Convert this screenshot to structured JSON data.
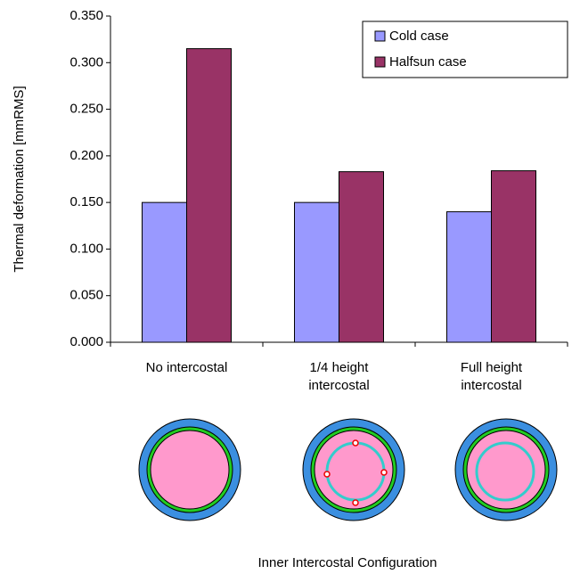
{
  "chart_data": {
    "type": "bar",
    "y_label": "Thermal deformation [mmRMS]",
    "x_label": "Inner Intercostal Configuration",
    "categories": [
      "No intercostal",
      "1/4 height intercostal",
      "Full height intercostal"
    ],
    "series": [
      {
        "name": "Cold case",
        "color": "#9999ff",
        "values": [
          0.15,
          0.15,
          0.14
        ]
      },
      {
        "name": "Halfsun case",
        "color": "#993366",
        "values": [
          0.315,
          0.183,
          0.184
        ]
      }
    ],
    "ylim": [
      0,
      0.35
    ],
    "yticks": [
      {
        "value": 0,
        "label": "0.000"
      },
      {
        "value": 0.05,
        "label": "0.050"
      },
      {
        "value": 0.1,
        "label": "0.100"
      },
      {
        "value": 0.15,
        "label": "0.150"
      },
      {
        "value": 0.2,
        "label": "0.200"
      },
      {
        "value": 0.25,
        "label": "0.250"
      },
      {
        "value": 0.3,
        "label": "0.300"
      },
      {
        "value": 0.35,
        "label": "0.350"
      }
    ],
    "legend": "top-right"
  }
}
